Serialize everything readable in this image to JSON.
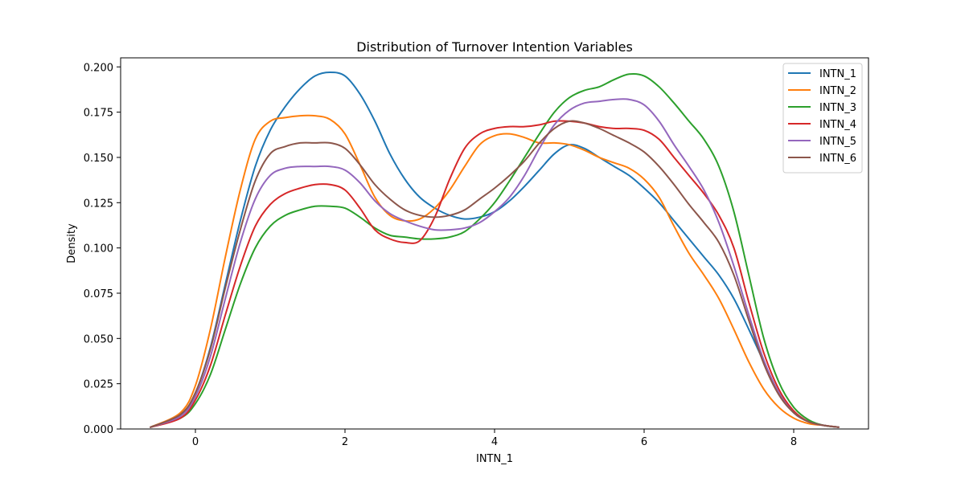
{
  "chart_data": {
    "type": "line",
    "title": "Distribution of Turnover Intention Variables",
    "xlabel": "INTN_1",
    "ylabel": "Density",
    "xlim": [
      -1.0,
      9.0
    ],
    "ylim": [
      0.0,
      0.205
    ],
    "xticks": [
      0,
      2,
      4,
      6,
      8
    ],
    "xtick_labels": [
      "0",
      "2",
      "4",
      "6",
      "8"
    ],
    "yticks": [
      0.0,
      0.025,
      0.05,
      0.075,
      0.1,
      0.125,
      0.15,
      0.175,
      0.2
    ],
    "ytick_labels": [
      "0.000",
      "0.025",
      "0.050",
      "0.075",
      "0.100",
      "0.125",
      "0.150",
      "0.175",
      "0.200"
    ],
    "grid": false,
    "legend": "top-right",
    "x": [
      -0.6,
      -0.2,
      0.0,
      0.2,
      0.4,
      0.6,
      0.8,
      1.0,
      1.2,
      1.4,
      1.6,
      1.8,
      2.0,
      2.2,
      2.4,
      2.6,
      2.8,
      3.0,
      3.2,
      3.4,
      3.6,
      3.8,
      4.0,
      4.2,
      4.4,
      4.6,
      4.8,
      5.0,
      5.2,
      5.4,
      5.6,
      5.8,
      6.0,
      6.2,
      6.4,
      6.6,
      6.8,
      7.0,
      7.2,
      7.4,
      7.6,
      7.8,
      8.0,
      8.2,
      8.4,
      8.6
    ],
    "series": [
      {
        "name": "INTN_1",
        "color": "#1f77b4",
        "values": [
          0.001,
          0.008,
          0.02,
          0.045,
          0.08,
          0.115,
          0.145,
          0.165,
          0.178,
          0.188,
          0.195,
          0.197,
          0.195,
          0.185,
          0.17,
          0.152,
          0.138,
          0.128,
          0.122,
          0.118,
          0.116,
          0.117,
          0.12,
          0.126,
          0.134,
          0.143,
          0.152,
          0.157,
          0.155,
          0.15,
          0.145,
          0.14,
          0.133,
          0.125,
          0.115,
          0.105,
          0.095,
          0.085,
          0.072,
          0.055,
          0.037,
          0.02,
          0.009,
          0.004,
          0.002,
          0.001
        ]
      },
      {
        "name": "INTN_2",
        "color": "#ff7f0e",
        "values": [
          0.001,
          0.009,
          0.024,
          0.055,
          0.095,
          0.132,
          0.16,
          0.17,
          0.172,
          0.173,
          0.173,
          0.171,
          0.163,
          0.146,
          0.128,
          0.118,
          0.115,
          0.116,
          0.122,
          0.132,
          0.145,
          0.157,
          0.162,
          0.163,
          0.161,
          0.158,
          0.158,
          0.157,
          0.154,
          0.15,
          0.147,
          0.144,
          0.138,
          0.128,
          0.112,
          0.097,
          0.085,
          0.072,
          0.055,
          0.037,
          0.022,
          0.012,
          0.006,
          0.003,
          0.002,
          0.001
        ]
      },
      {
        "name": "INTN_3",
        "color": "#2ca02c",
        "values": [
          0.001,
          0.006,
          0.014,
          0.03,
          0.055,
          0.08,
          0.1,
          0.112,
          0.118,
          0.121,
          0.123,
          0.123,
          0.122,
          0.117,
          0.111,
          0.107,
          0.106,
          0.105,
          0.105,
          0.106,
          0.109,
          0.116,
          0.125,
          0.137,
          0.15,
          0.163,
          0.175,
          0.183,
          0.187,
          0.189,
          0.193,
          0.196,
          0.195,
          0.189,
          0.18,
          0.17,
          0.16,
          0.145,
          0.12,
          0.085,
          0.05,
          0.026,
          0.012,
          0.005,
          0.002,
          0.001
        ]
      },
      {
        "name": "INTN_4",
        "color": "#d62728",
        "values": [
          0.001,
          0.006,
          0.016,
          0.035,
          0.063,
          0.09,
          0.112,
          0.124,
          0.13,
          0.133,
          0.135,
          0.135,
          0.132,
          0.122,
          0.11,
          0.105,
          0.103,
          0.104,
          0.117,
          0.138,
          0.155,
          0.163,
          0.166,
          0.167,
          0.167,
          0.168,
          0.17,
          0.17,
          0.169,
          0.167,
          0.166,
          0.166,
          0.165,
          0.16,
          0.15,
          0.14,
          0.13,
          0.118,
          0.1,
          0.07,
          0.042,
          0.022,
          0.01,
          0.004,
          0.002,
          0.001
        ]
      },
      {
        "name": "INTN_5",
        "color": "#9467bd",
        "values": [
          0.001,
          0.007,
          0.018,
          0.04,
          0.072,
          0.103,
          0.127,
          0.14,
          0.144,
          0.145,
          0.145,
          0.145,
          0.143,
          0.136,
          0.126,
          0.119,
          0.115,
          0.112,
          0.11,
          0.11,
          0.111,
          0.114,
          0.12,
          0.128,
          0.14,
          0.155,
          0.168,
          0.176,
          0.18,
          0.181,
          0.182,
          0.182,
          0.179,
          0.17,
          0.157,
          0.145,
          0.132,
          0.114,
          0.09,
          0.063,
          0.038,
          0.02,
          0.009,
          0.004,
          0.002,
          0.001
        ]
      },
      {
        "name": "INTN_6",
        "color": "#8c564b",
        "values": [
          0.001,
          0.008,
          0.02,
          0.044,
          0.078,
          0.11,
          0.137,
          0.152,
          0.156,
          0.158,
          0.158,
          0.158,
          0.155,
          0.146,
          0.135,
          0.127,
          0.121,
          0.118,
          0.117,
          0.118,
          0.121,
          0.127,
          0.133,
          0.14,
          0.148,
          0.158,
          0.166,
          0.17,
          0.169,
          0.166,
          0.162,
          0.158,
          0.153,
          0.145,
          0.135,
          0.124,
          0.114,
          0.103,
          0.085,
          0.06,
          0.036,
          0.019,
          0.009,
          0.004,
          0.002,
          0.001
        ]
      }
    ]
  }
}
